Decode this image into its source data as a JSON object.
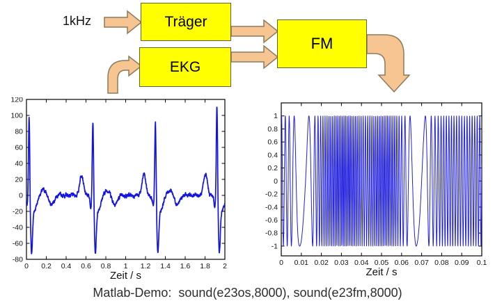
{
  "diagram": {
    "input_label": "1kHz",
    "blocks": [
      {
        "id": "traeger",
        "label": "Träger"
      },
      {
        "id": "ekg",
        "label": "EKG"
      },
      {
        "id": "fm",
        "label": "FM"
      }
    ],
    "colors": {
      "block_fill": "#ffff00",
      "block_border": "#60603a",
      "arrow_fill": "#f6c591",
      "arrow_border": "#8c7a5e"
    }
  },
  "caption": {
    "text": "Matlab-Demo:  sound(e23os,8000), sound(e23fm,8000)"
  },
  "chart_data": [
    {
      "id": "ekg-signal",
      "type": "line",
      "title": "",
      "xlabel": "Zeit / s",
      "ylabel": "",
      "xlim": [
        0,
        2
      ],
      "ylim": [
        -80,
        120
      ],
      "xtick_values": [
        0,
        0.2,
        0.4,
        0.6,
        0.8,
        1,
        1.2,
        1.4,
        1.6,
        1.8,
        2
      ],
      "xtick_labels": [
        "0",
        "0.2",
        "0.4",
        "0.6",
        "0.8",
        "1",
        "1.2",
        "1.4",
        "1.6",
        "1.8",
        "2"
      ],
      "ytick_values": [
        -80,
        -60,
        -40,
        -20,
        0,
        20,
        40,
        60,
        80,
        100,
        120
      ],
      "ytick_labels": [
        "-80",
        "-60",
        "-40",
        "-20",
        "0",
        "20",
        "40",
        "60",
        "80",
        "100",
        "120"
      ],
      "grid": false,
      "line_color": "#1414e0",
      "line_width": 1.7,
      "generator": "ekg",
      "description": "EKG (ECG) trace with 4 heartbeats; R peaks ~100-118, S dips ~-60, P waves ~27 leading each QRS by ~0.11 s",
      "beats": [
        {
          "t": 0.027,
          "r": 103
        },
        {
          "t": 0.67,
          "r": 100
        },
        {
          "t": 1.3,
          "r": 96
        },
        {
          "t": 1.92,
          "r": 118
        }
      ],
      "r_sigma": 0.0065,
      "p_wave": {
        "lead": 0.115,
        "amp": 27,
        "sigma": 0.018
      },
      "q_dip": {
        "lead": 0.02,
        "amp": -14,
        "sigma": 0.009
      },
      "s_dip": {
        "lag": 0.024,
        "amp": -62,
        "sigma": 0.01
      },
      "recovery_dip": {
        "lag": 0.052,
        "amp": -18,
        "sigma": 0.026
      },
      "t_wave": {
        "lag": 0.15,
        "amp": 7,
        "sigma": 0.03
      },
      "after_dip": {
        "lag": 0.22,
        "amp": -11,
        "sigma": 0.028
      },
      "noise_amp": 1.6,
      "noise_seed": 7,
      "samples": 1500
    },
    {
      "id": "fm-signal",
      "type": "line",
      "title": "",
      "xlabel": "Zeit / s",
      "ylabel": "",
      "xlim": [
        0,
        0.1
      ],
      "ylim": [
        -1.15,
        1.2
      ],
      "xtick_values": [
        0,
        0.01,
        0.02,
        0.03,
        0.04,
        0.05,
        0.06,
        0.07,
        0.08,
        0.09,
        0.1
      ],
      "xtick_labels": [
        "0",
        "0.01",
        "0.02",
        "0.03",
        "0.04",
        "0.05",
        "0.06",
        "0.07",
        "0.08",
        "0.09",
        "0.1"
      ],
      "ytick_values": [
        -1,
        -0.8,
        -0.6,
        -0.4,
        -0.2,
        0,
        0.2,
        0.4,
        0.6,
        0.8,
        1
      ],
      "ytick_labels": [
        "-1",
        "-0.8",
        "-0.6",
        "-0.4",
        "-0.2",
        "0",
        "0.2",
        "0.4",
        "0.6",
        "0.8",
        "1"
      ],
      "grid": false,
      "line_color": "#2020dd",
      "line_width": 1,
      "generator": "fm",
      "description": "FM-modulated carrier (EKG modulates 1 kHz tone); unit amplitude, instantaneous frequency varies ~80-1300 Hz with slow cycles near t=0.01 s and t=0.068 s",
      "phase0": 0.17,
      "freq_profile": [
        [
          0,
          550
        ],
        [
          0.004,
          500
        ],
        [
          0.007,
          250
        ],
        [
          0.009,
          80
        ],
        [
          0.012,
          90
        ],
        [
          0.015,
          280
        ],
        [
          0.018,
          700
        ],
        [
          0.022,
          1000
        ],
        [
          0.027,
          1200
        ],
        [
          0.032,
          1300
        ],
        [
          0.037,
          1150
        ],
        [
          0.042,
          850
        ],
        [
          0.047,
          1100
        ],
        [
          0.052,
          1250
        ],
        [
          0.057,
          1000
        ],
        [
          0.061,
          600
        ],
        [
          0.065,
          180
        ],
        [
          0.068,
          80
        ],
        [
          0.071,
          120
        ],
        [
          0.075,
          500
        ],
        [
          0.08,
          750
        ],
        [
          0.085,
          800
        ],
        [
          0.09,
          750
        ],
        [
          0.095,
          800
        ],
        [
          0.1,
          780
        ]
      ],
      "samples": 2600
    }
  ]
}
